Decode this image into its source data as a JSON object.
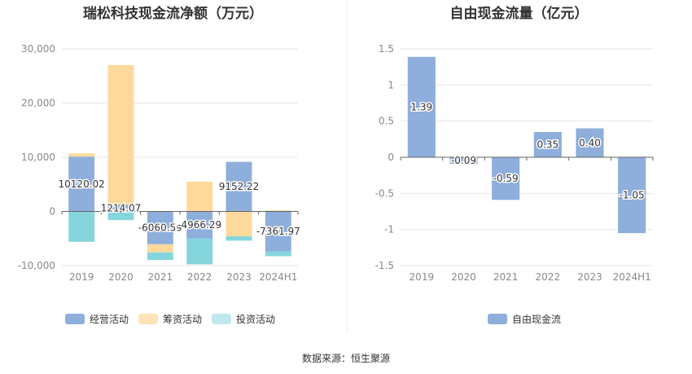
{
  "source_label": "数据来源：恒生聚源",
  "chart_data": [
    {
      "type": "bar",
      "stacked": true,
      "title": "瑞松科技现金流净额（万元）",
      "categories": [
        "2019",
        "2020",
        "2021",
        "2022",
        "2023",
        "2024H1"
      ],
      "ylim": [
        -10000,
        30000
      ],
      "yticks": [
        -10000,
        0,
        10000,
        20000,
        30000
      ],
      "ytick_labels": [
        "-10,000",
        "0",
        "10,000",
        "20,000",
        "30,000"
      ],
      "grid": true,
      "legend_position": "bottom-left",
      "series": [
        {
          "name": "经营活动",
          "color": "#8eaedb",
          "values": [
            10120.02,
            1214.07,
            -6060.59,
            -4966.29,
            9152.22,
            -7361.97
          ],
          "labels": [
            "10120.02",
            "1214.07",
            "-6060.59",
            "-4966.29",
            "9152.22",
            "-7361.97"
          ]
        },
        {
          "name": "筹资活动",
          "color": "#fdd99b",
          "values": [
            600,
            25800,
            -1500,
            5500,
            -4600,
            200
          ]
        },
        {
          "name": "投资活动",
          "color": "#85d6dc",
          "values": [
            -5600,
            -1600,
            -1400,
            -4800,
            -800,
            -900
          ]
        }
      ]
    },
    {
      "type": "bar",
      "title": "自由现金流量（亿元）",
      "categories": [
        "2019",
        "2020",
        "2021",
        "2022",
        "2023",
        "2024H1"
      ],
      "ylim": [
        -1.5,
        1.5
      ],
      "yticks": [
        -1.5,
        -1,
        -0.5,
        0,
        0.5,
        1,
        1.5
      ],
      "ytick_labels": [
        "-1.5",
        "-1",
        "-0.5",
        "0",
        "0.5",
        "1",
        "1.5"
      ],
      "grid": true,
      "legend_position": "bottom-center",
      "series": [
        {
          "name": "自由现金流",
          "color": "#8eaedb",
          "values": [
            1.39,
            -0.09,
            -0.59,
            0.35,
            0.4,
            -1.05
          ],
          "labels": [
            "1.39",
            "-0.09",
            "-0.59",
            "0.35",
            "0.40",
            "-1.05"
          ]
        }
      ]
    }
  ]
}
